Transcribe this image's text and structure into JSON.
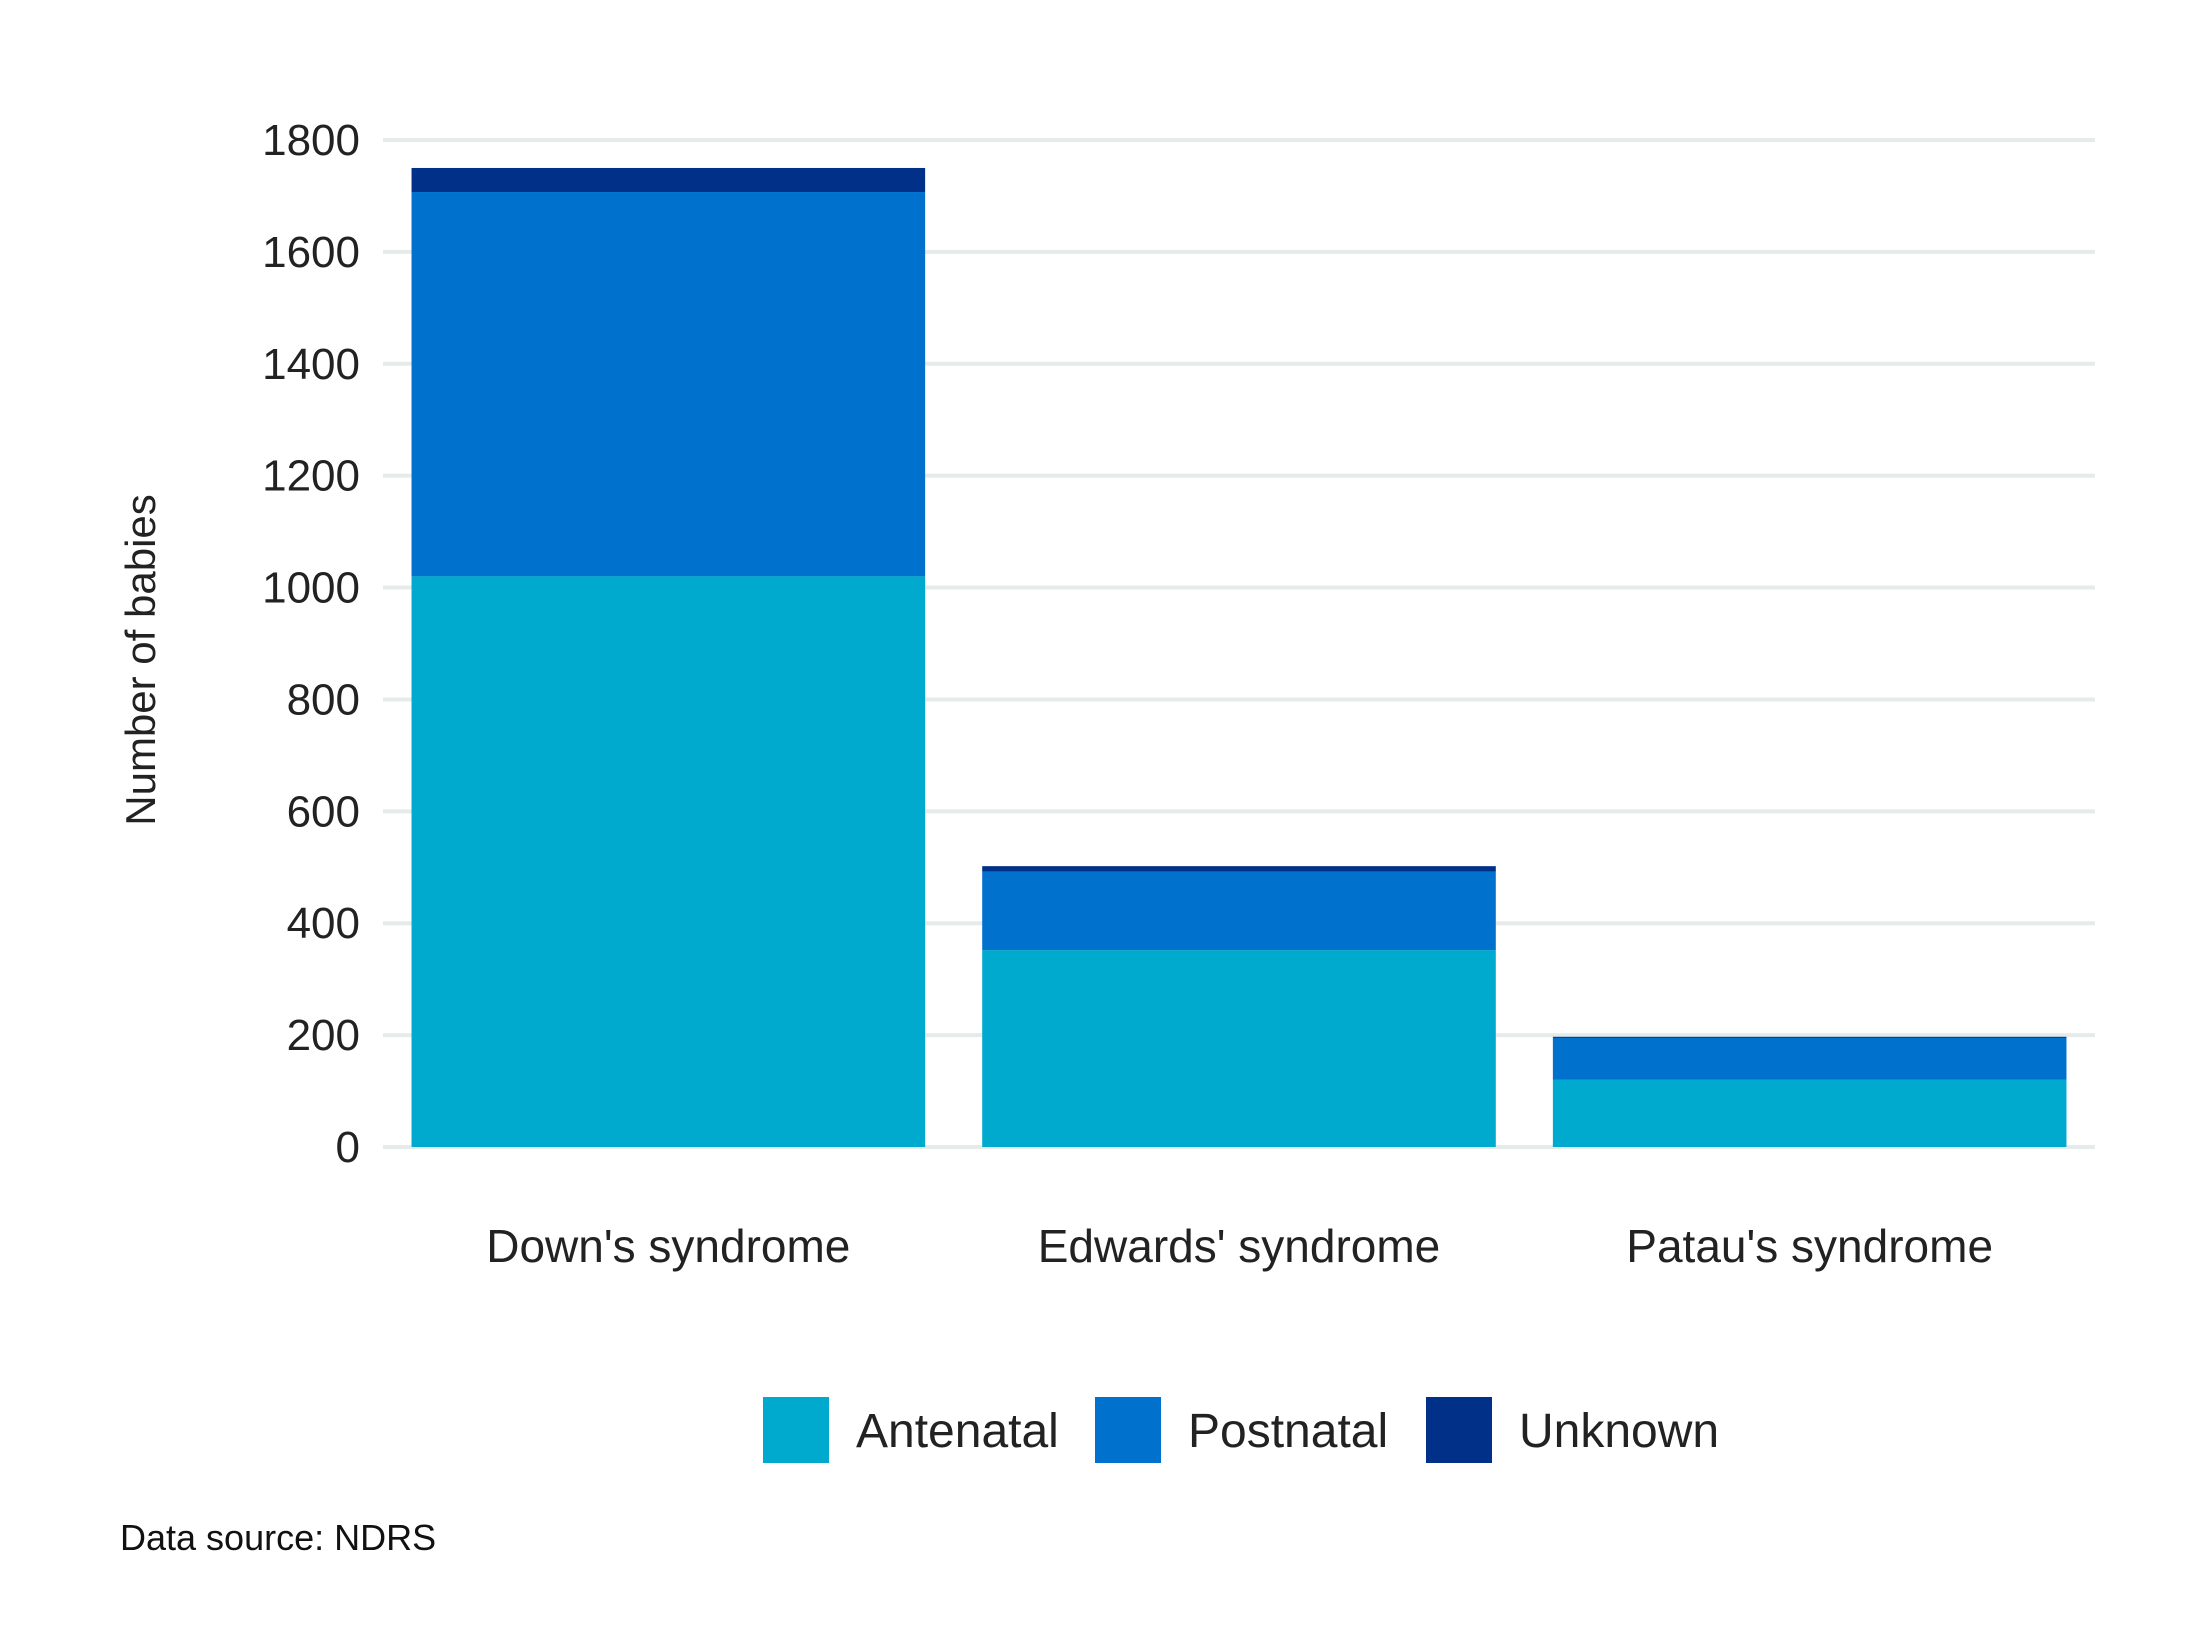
{
  "chart_data": {
    "type": "bar",
    "stacked": true,
    "categories": [
      "Down's syndrome",
      "Edwards' syndrome",
      "Patau's syndrome"
    ],
    "series": [
      {
        "name": "Antenatal",
        "color": "#00a9ce",
        "values": [
          1020,
          352,
          120
        ]
      },
      {
        "name": "Postnatal",
        "color": "#0072ce",
        "values": [
          687,
          140,
          75
        ]
      },
      {
        "name": "Unknown",
        "color": "#003087",
        "values": [
          43,
          10,
          2
        ]
      }
    ],
    "ylabel": "Number of babies",
    "xlabel": "",
    "ylim": [
      0,
      1800
    ],
    "yticks": [
      "0",
      "200",
      "400",
      "600",
      "800",
      "1000",
      "1200",
      "1400",
      "1600",
      "1800"
    ],
    "grid": true,
    "legend_position": "bottom",
    "caption": "Data source: NDRS"
  }
}
